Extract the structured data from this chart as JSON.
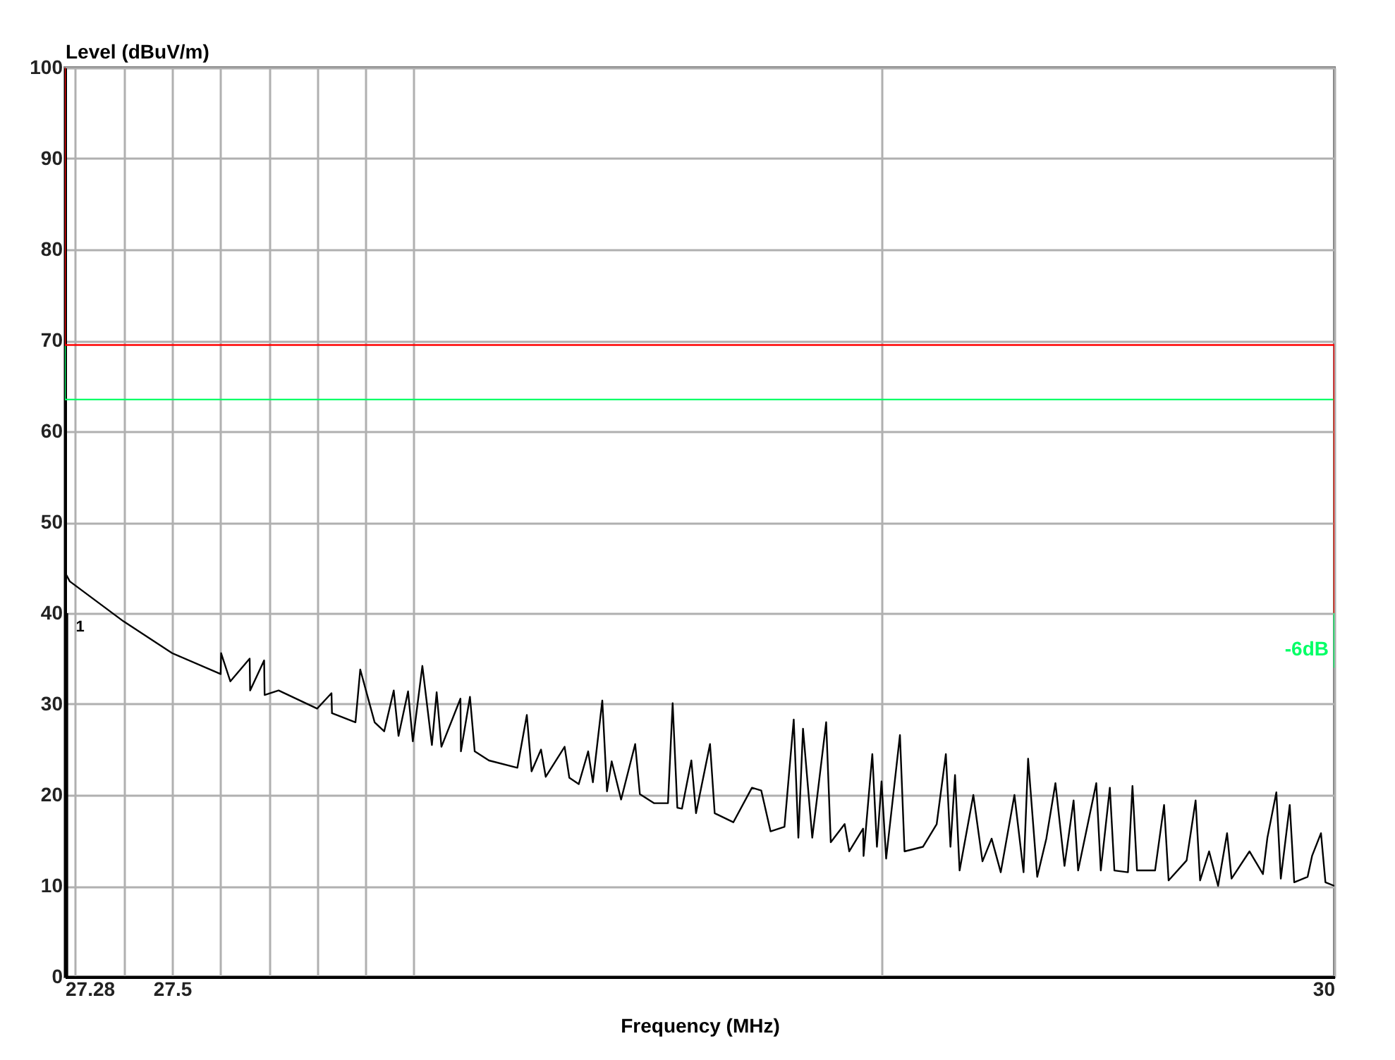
{
  "chart_data": {
    "type": "line",
    "xlabel": "Frequency (MHz)",
    "ylabel": "Level (dBuV/m)",
    "log": "x",
    "grid": true,
    "marker": "none",
    "line_style": "solid",
    "xlim": [
      27.28,
      30
    ],
    "ylim": [
      0,
      100
    ],
    "xticks": [
      27.28,
      {
        "value": 27.3,
        "label": null
      },
      {
        "value": 27.4,
        "label": null
      },
      27.5,
      {
        "value": 27.6,
        "label": null
      },
      {
        "value": 27.7,
        "label": null
      },
      {
        "value": 27.8,
        "label": null
      },
      {
        "value": 27.9,
        "label": null
      },
      {
        "value": 28,
        "label": null
      },
      {
        "value": 29,
        "label": null
      },
      30
    ],
    "yticks": [
      0,
      10,
      20,
      30,
      40,
      50,
      60,
      70,
      80,
      90,
      100
    ],
    "series": [
      {
        "color": "#ff0000",
        "x": [
          27.28,
          27.28,
          30,
          30
        ],
        "values": [
          100,
          69.5,
          69.5,
          40
        ]
      },
      {
        "color": "#00ff66",
        "x": [
          27.28,
          27.28,
          30,
          30
        ],
        "values": [
          69.5,
          63.5,
          63.5,
          34
        ]
      },
      {
        "color": "#000000",
        "x": [
          27.285,
          27.285
        ],
        "values": [
          0,
          40
        ]
      },
      {
        "color": "#000000",
        "x": [
          27.28,
          27.29,
          27.4,
          27.5,
          27.6,
          27.601,
          27.62,
          27.66,
          27.661,
          27.69,
          27.691,
          27.72,
          27.8,
          27.83,
          27.831,
          27.88,
          27.89,
          27.92,
          27.94,
          27.96,
          27.97,
          27.99,
          28.0,
          28.02,
          28.04,
          28.05,
          28.06,
          28.1,
          28.101,
          28.12,
          28.13,
          28.16,
          28.22,
          28.24,
          28.25,
          28.27,
          28.28,
          28.32,
          28.33,
          28.35,
          28.37,
          28.38,
          28.4,
          28.41,
          28.42,
          28.44,
          28.47,
          28.48,
          28.51,
          28.54,
          28.55,
          28.56,
          28.57,
          28.59,
          28.6,
          28.63,
          28.64,
          28.68,
          28.72,
          28.74,
          28.76,
          28.79,
          28.81,
          28.82,
          28.83,
          28.85,
          28.88,
          28.89,
          28.92,
          28.93,
          28.96,
          28.961,
          28.98,
          28.99,
          29.0,
          29.01,
          29.04,
          29.05,
          29.09,
          29.12,
          29.14,
          29.15,
          29.16,
          29.17,
          29.2,
          29.22,
          29.24,
          29.26,
          29.29,
          29.31,
          29.32,
          29.34,
          29.36,
          29.38,
          29.4,
          29.42,
          29.43,
          29.47,
          29.48,
          29.5,
          29.51,
          29.54,
          29.55,
          29.56,
          29.6,
          29.62,
          29.63,
          29.67,
          29.69,
          29.7,
          29.72,
          29.74,
          29.76,
          29.77,
          29.81,
          29.84,
          29.85,
          29.87,
          29.88,
          29.9,
          29.91,
          29.94,
          29.95,
          29.97,
          29.98,
          30
        ],
        "values": [
          44.5,
          43.5,
          39.1,
          35.6,
          33.3,
          35.6,
          32.5,
          35,
          31.5,
          34.8,
          31,
          31.5,
          29.5,
          31.2,
          29,
          28,
          33.8,
          28,
          27,
          31.5,
          26.5,
          31.4,
          25.9,
          34.2,
          25.5,
          31.3,
          25.3,
          30.6,
          24.8,
          30.8,
          24.8,
          23.8,
          23,
          28.8,
          22.6,
          25,
          22,
          25.3,
          21.9,
          21.2,
          24.8,
          21.4,
          30.4,
          20.4,
          23.7,
          19.5,
          25.6,
          20.1,
          19.1,
          19.1,
          30.1,
          18.6,
          18.5,
          23.8,
          18,
          25.6,
          18,
          17,
          20.8,
          20.5,
          16,
          16.5,
          28.3,
          15.3,
          27.3,
          15.3,
          28,
          14.8,
          16.8,
          13.8,
          16.3,
          13.3,
          24.5,
          14.3,
          21.5,
          13,
          26.6,
          13.8,
          14.3,
          16.8,
          24.5,
          14.3,
          22.2,
          11.7,
          20,
          12.7,
          15.2,
          11.5,
          20,
          11.5,
          24,
          11,
          15.2,
          21.3,
          12.2,
          19.4,
          11.7,
          21.3,
          11.7,
          20.8,
          11.7,
          11.5,
          21,
          11.7,
          11.7,
          18.9,
          10.6,
          12.8,
          19.4,
          10.6,
          13.8,
          10,
          15.8,
          10.8,
          13.8,
          11.3,
          15.3,
          20.3,
          10.8,
          18.9,
          10.4,
          11,
          13.3,
          15.8,
          10.4,
          10
        ]
      }
    ],
    "annotations": [
      "1",
      {
        "text": "-6dB",
        "x": 30,
        "y": 36
      }
    ]
  }
}
